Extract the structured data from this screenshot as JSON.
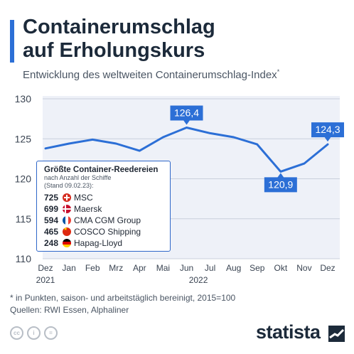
{
  "title_line1": "Containerumschlag",
  "title_line2": "auf Erholungskurs",
  "subtitle": "Entwicklung des weltweiten Containerumschlag-Index",
  "subtitle_mark": "*",
  "chart_data": {
    "type": "line",
    "x": [
      "Dez 2021",
      "Jan 2022",
      "Feb 2022",
      "Mrz 2022",
      "Apr 2022",
      "Mai 2022",
      "Jun 2022",
      "Jul 2022",
      "Aug 2022",
      "Sep 2022",
      "Okt 2022",
      "Nov 2022",
      "Dez 2022"
    ],
    "x_tick_labels": [
      "Dez",
      "Jan",
      "Feb",
      "Mrz",
      "Apr",
      "Mai",
      "Jun",
      "Jul",
      "Aug",
      "Sep",
      "Okt",
      "Nov",
      "Dez"
    ],
    "year_labels": [
      "2021",
      "2022"
    ],
    "series": [
      {
        "values": [
          123.8,
          124.4,
          124.9,
          124.4,
          123.5,
          125.2,
          126.4,
          125.7,
          125.2,
          124.3,
          120.9,
          121.9,
          124.3
        ]
      }
    ],
    "ylim": [
      110,
      130
    ],
    "y_ticks": [
      110,
      115,
      120,
      125,
      130
    ],
    "grid": true,
    "color": "#2c6fd6",
    "annotations": [
      {
        "label": "126,4",
        "index": 6
      },
      {
        "label": "120,9",
        "index": 10
      },
      {
        "label": "124,3",
        "index": 12
      }
    ]
  },
  "infobox": {
    "title": "Größte Container-Reedereien",
    "subtitle_line1": "nach Anzahl der Schiffe",
    "subtitle_line2": "(Stand 09.02.23):",
    "rows": [
      {
        "num": "725",
        "name": "MSC",
        "flag": "switzerland-flag-icon"
      },
      {
        "num": "699",
        "name": "Maersk",
        "flag": "denmark-flag-icon"
      },
      {
        "num": "594",
        "name": "CMA CGM Group",
        "flag": "france-flag-icon"
      },
      {
        "num": "465",
        "name": "COSCO Shipping",
        "flag": "china-flag-icon"
      },
      {
        "num": "248",
        "name": "Hapag-Lloyd",
        "flag": "germany-flag-icon"
      }
    ]
  },
  "footnote_line1": "* in Punkten, saison- und arbeitstäglich bereinigt, 2015=100",
  "footnote_line2": "Quellen: RWI Essen, Alphaliner",
  "license_icons": [
    "cc",
    "i",
    "="
  ],
  "brand": "statista"
}
